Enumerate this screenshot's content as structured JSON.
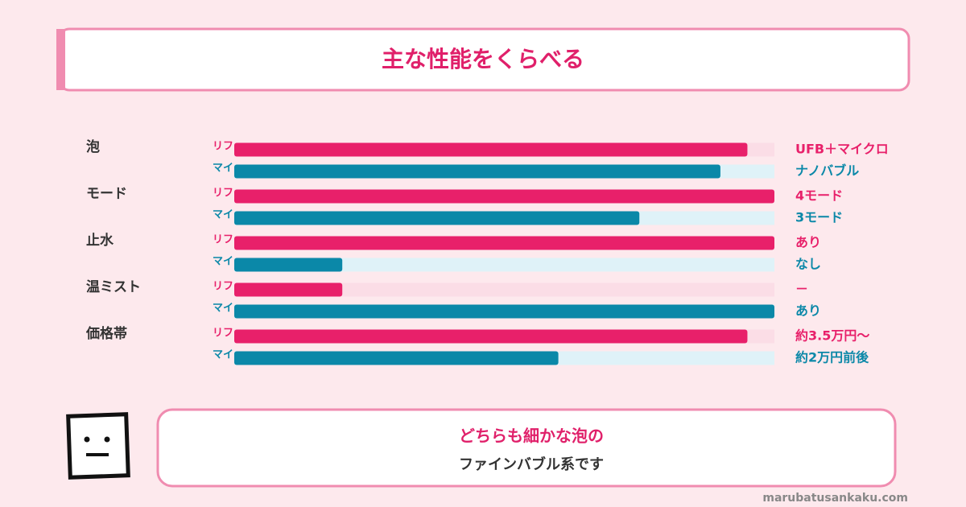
{
  "chart_data": {
    "type": "bar",
    "orientation": "horizontal",
    "title": "主な性能をくらべる",
    "categories": [
      "泡",
      "モード",
      "止水",
      "温ミスト",
      "価格帯"
    ],
    "xlim": [
      0,
      100
    ],
    "series": [
      {
        "name": "リフ",
        "color": "#e8206a",
        "track_color": "#fbdde6",
        "values": [
          95,
          100,
          100,
          20,
          95
        ],
        "labels": [
          "UFB＋マイクロ",
          "4モード",
          "あり",
          "－",
          "約3.5万円～"
        ]
      },
      {
        "name": "マイ",
        "color": "#0b88a8",
        "track_color": "#dff2f8",
        "values": [
          90,
          75,
          20,
          100,
          60
        ],
        "labels": [
          "ナノバブル",
          "3モード",
          "なし",
          "あり",
          "約2万円前後"
        ]
      }
    ],
    "annotations": [
      "どちらも細かな泡の",
      "ファインバブル系です"
    ],
    "source": "marubatusankaku.com"
  }
}
